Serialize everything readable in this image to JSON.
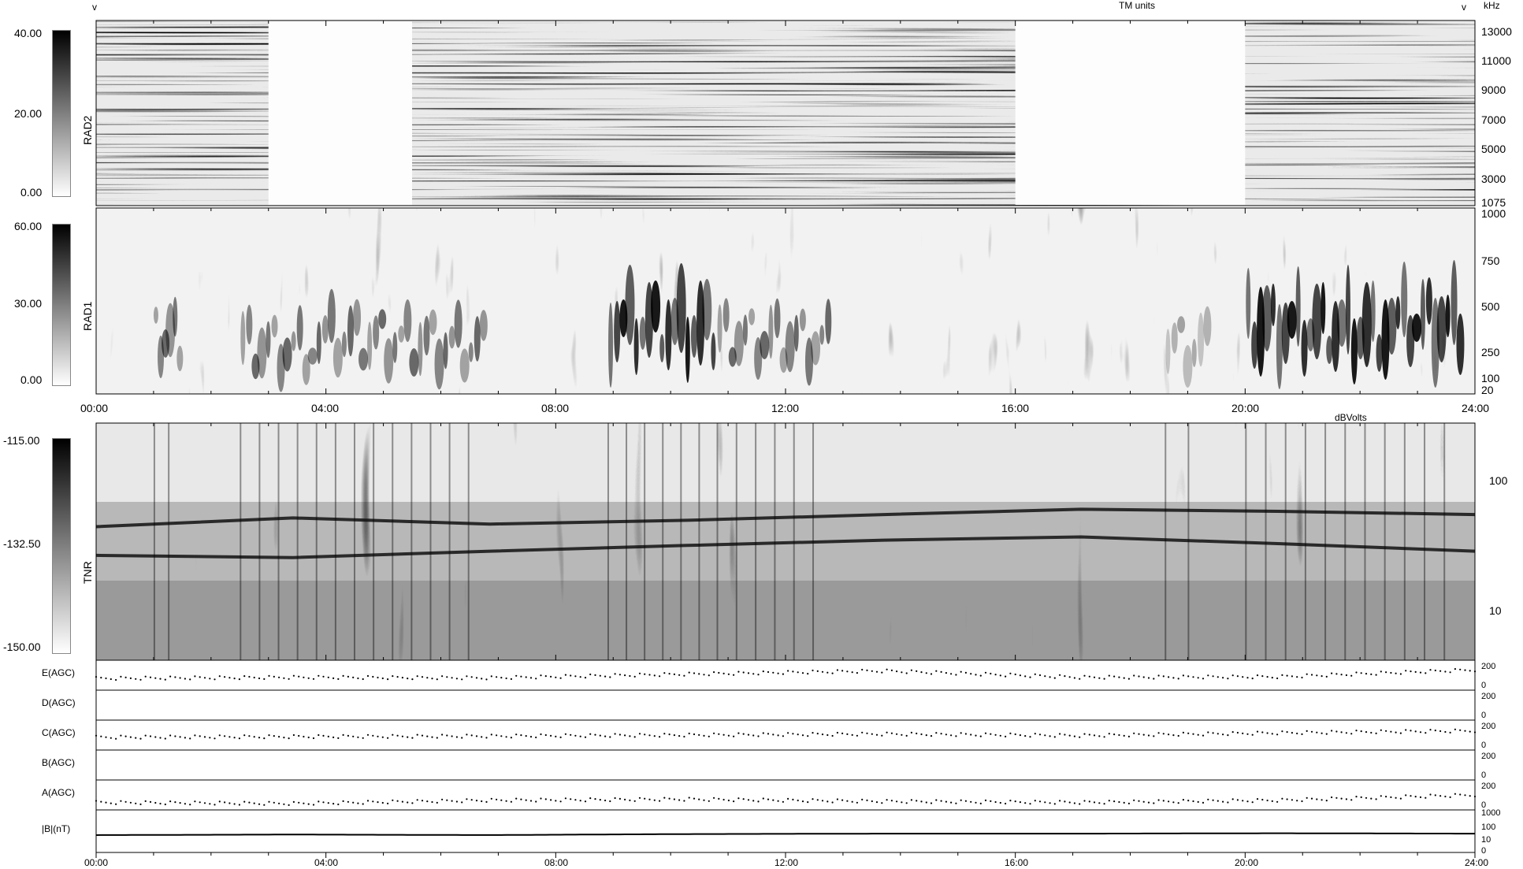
{
  "top_units": {
    "tm": "TM units",
    "khz": "kHz",
    "dbvolts": "dBVolts",
    "v_left": "v",
    "v_right": "v"
  },
  "time_ticks": [
    "00:00",
    "04:00",
    "08:00",
    "12:00",
    "16:00",
    "20:00",
    "24:00"
  ],
  "panels": [
    {
      "id": "rad2",
      "name": "RAD2",
      "colorbar": [
        "40.00",
        "20.00",
        "0.00"
      ],
      "freq_ticks": [
        "13000",
        "11000",
        "9000",
        "7000",
        "5000",
        "3000",
        "1075"
      ]
    },
    {
      "id": "rad1",
      "name": "RAD1",
      "colorbar": [
        "60.00",
        "30.00",
        "0.00"
      ],
      "freq_ticks": [
        "1000",
        "750",
        "500",
        "250",
        "100",
        "20"
      ]
    },
    {
      "id": "tnr",
      "name": "TNR",
      "colorbar": [
        "-115.00",
        "-132.50",
        "-150.00"
      ],
      "freq_ticks": [
        "100",
        "10"
      ]
    }
  ],
  "agc_panels": [
    {
      "name": "E(AGC)",
      "ticks": [
        "200",
        "0"
      ]
    },
    {
      "name": "D(AGC)",
      "ticks": [
        "200",
        "0"
      ]
    },
    {
      "name": "C(AGC)",
      "ticks": [
        "200",
        "0"
      ]
    },
    {
      "name": "B(AGC)",
      "ticks": [
        "200",
        "0"
      ]
    },
    {
      "name": "A(AGC)",
      "ticks": [
        "200",
        "0"
      ]
    },
    {
      "name": "|B|(nT)",
      "ticks": [
        "1000",
        "100",
        "10",
        "0"
      ]
    }
  ],
  "chart_data": {
    "type": "heatmap",
    "x_range_hours": [
      0,
      24
    ],
    "colormap": "grayscale",
    "rad2_gaps_hours": [
      [
        3.0,
        5.5
      ],
      [
        16.0,
        20.0
      ]
    ],
    "rad1_activity": [
      {
        "start_hour": 1.0,
        "end_hour": 1.5,
        "level": "moderate"
      },
      {
        "start_hour": 2.5,
        "end_hour": 6.8,
        "level": "moderate"
      },
      {
        "start_hour": 8.9,
        "end_hour": 10.8,
        "level": "strong"
      },
      {
        "start_hour": 10.8,
        "end_hour": 12.8,
        "level": "moderate"
      },
      {
        "start_hour": 18.6,
        "end_hour": 19.4,
        "level": "weak"
      },
      {
        "start_hour": 20.0,
        "end_hour": 23.8,
        "level": "strong"
      }
    ],
    "tnr_bands": [
      {
        "name": "upper line",
        "freq_khz": [
          45,
          52,
          47,
          50,
          55,
          60,
          58,
          55
        ]
      },
      {
        "name": "lower line",
        "freq_khz": [
          28,
          27,
          30,
          33,
          36,
          38,
          34,
          30
        ]
      }
    ],
    "agc_series": {
      "E(AGC)": [
        80,
        90,
        85,
        120,
        150,
        90,
        95,
        160
      ],
      "D(AGC)": [
        0,
        0,
        0,
        0,
        0,
        0,
        0,
        0
      ],
      "C(AGC)": [
        90,
        95,
        100,
        110,
        120,
        105,
        130,
        150
      ],
      "B(AGC)": [
        0,
        0,
        0,
        0,
        0,
        0,
        0,
        0
      ],
      "A(AGC)": [
        40,
        30,
        60,
        70,
        50,
        40,
        60,
        110
      ],
      "|B|(nT)": [
        8,
        9,
        8,
        10,
        11,
        11,
        12,
        11
      ]
    }
  }
}
